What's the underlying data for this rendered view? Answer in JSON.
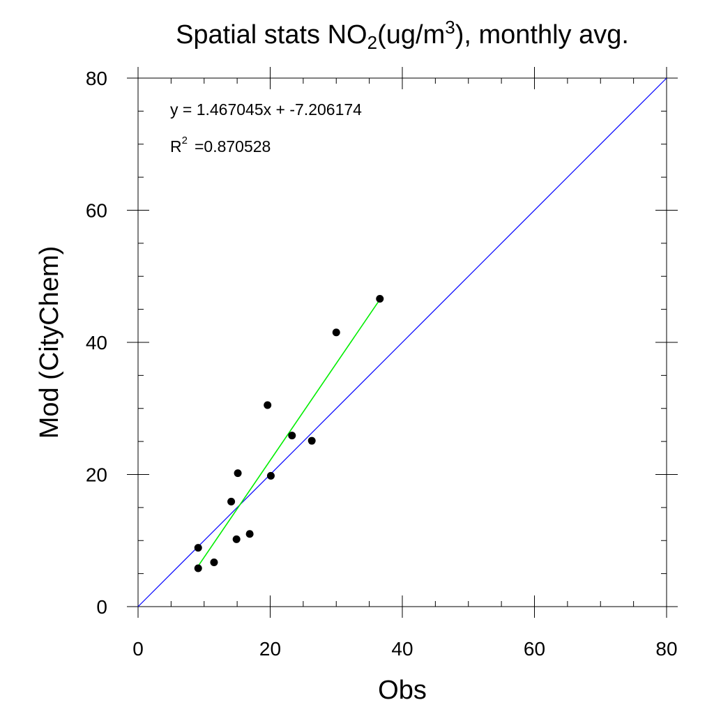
{
  "chart_data": {
    "type": "scatter",
    "title": {
      "main": "Spatial stats NO",
      "sub": "2",
      "mid": "(ug/m",
      "sup": "3",
      "tail": "), monthly avg."
    },
    "xlabel": "Obs",
    "ylabel": "Mod (CityChem)",
    "xlim": [
      0,
      80
    ],
    "ylim": [
      0,
      80
    ],
    "xticks": [
      0,
      20,
      40,
      60,
      80
    ],
    "yticks": [
      0,
      20,
      40,
      60,
      80
    ],
    "minor_step": 5,
    "points": [
      {
        "x": 9.1,
        "y": 8.9
      },
      {
        "x": 9.1,
        "y": 5.8
      },
      {
        "x": 11.5,
        "y": 6.7
      },
      {
        "x": 14.1,
        "y": 15.9
      },
      {
        "x": 14.9,
        "y": 10.2
      },
      {
        "x": 15.1,
        "y": 20.2
      },
      {
        "x": 16.9,
        "y": 11.0
      },
      {
        "x": 19.6,
        "y": 30.5
      },
      {
        "x": 20.1,
        "y": 19.8
      },
      {
        "x": 23.3,
        "y": 25.9
      },
      {
        "x": 26.3,
        "y": 25.1
      },
      {
        "x": 30.0,
        "y": 41.5
      },
      {
        "x": 36.6,
        "y": 46.6
      }
    ],
    "regression": {
      "slope": 1.467045,
      "intercept": -7.206174,
      "x_range": [
        9.1,
        36.6
      ],
      "color": "#00ee00",
      "equation_label": "y = 1.467045x + -7.206174",
      "r2_prefix": "R",
      "r2_sup": "2",
      "r2_value": "=0.870528"
    },
    "one_to_one": {
      "from": [
        0,
        0
      ],
      "to": [
        80,
        80
      ],
      "color": "#0000ff"
    },
    "marker_color": "#000000",
    "grid": false
  }
}
